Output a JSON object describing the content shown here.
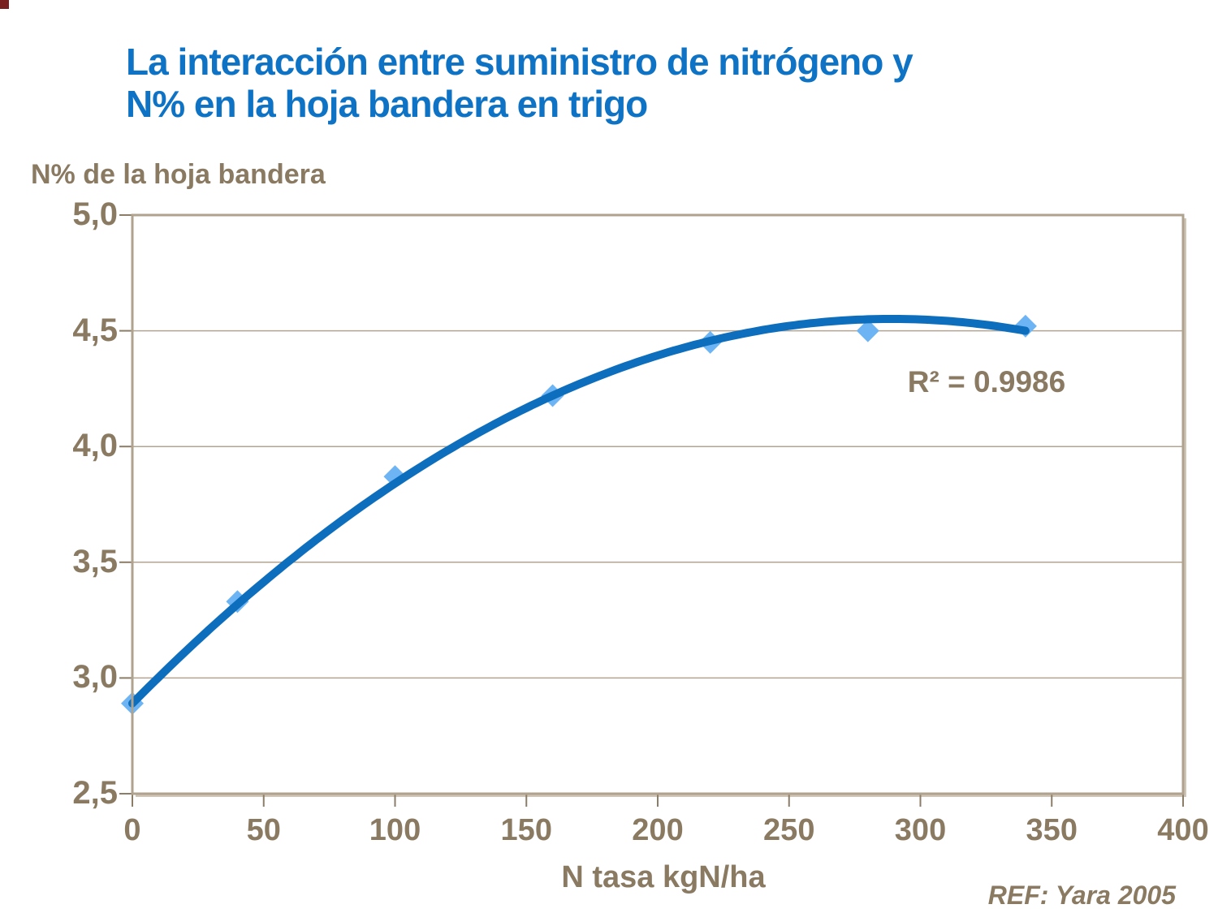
{
  "title": {
    "line1": "La interacción entre suministro de nitrógeno y",
    "line2": "N% en la hoja bandera en trigo"
  },
  "colors": {
    "title_blue": "#0e73c5",
    "trend_line_blue": "#0d6ebd",
    "marker_light_blue": "#6cb4f4",
    "text_brown": "#8a7a62",
    "frame_tan": "#afa28f",
    "grid_tan": "#b3a492",
    "tick_tan": "#8c7d68"
  },
  "chart_data": {
    "type": "scatter",
    "title": "",
    "y_axis_title": "N% de la hoja bandera",
    "xlabel": "N tasa kgN/ha",
    "ylabel": "",
    "x": [
      0,
      40,
      100,
      160,
      220,
      280,
      340
    ],
    "y": [
      2.89,
      3.33,
      3.87,
      4.22,
      4.45,
      4.5,
      4.52
    ],
    "series_marker": "diamond",
    "trendline": {
      "type": "polynomial",
      "order": 2,
      "coefficients": {
        "a": 2.89,
        "b": 0.011492,
        "c": -1.9873e-05
      },
      "x_range": [
        0,
        340
      ],
      "r_squared": 0.9986
    },
    "annotation": "R² = 0.9986",
    "xlim": [
      0,
      400
    ],
    "ylim": [
      2.5,
      5.0
    ],
    "x_ticks": [
      {
        "value": 0,
        "label": "0"
      },
      {
        "value": 50,
        "label": "50"
      },
      {
        "value": 100,
        "label": "100"
      },
      {
        "value": 150,
        "label": "150"
      },
      {
        "value": 200,
        "label": "200"
      },
      {
        "value": 250,
        "label": "250"
      },
      {
        "value": 300,
        "label": "300"
      },
      {
        "value": 350,
        "label": "350"
      },
      {
        "value": 400,
        "label": "400"
      }
    ],
    "y_ticks": [
      {
        "value": 5.0,
        "label": "5,0"
      },
      {
        "value": 4.5,
        "label": "4,5"
      },
      {
        "value": 4.0,
        "label": "4,0"
      },
      {
        "value": 3.5,
        "label": "3,5"
      },
      {
        "value": 3.0,
        "label": "3,0"
      },
      {
        "value": 2.5,
        "label": "2,5"
      }
    ],
    "grid": "horizontal",
    "legend": "none"
  },
  "footer": {
    "reference": "REF: Yara 2005"
  }
}
